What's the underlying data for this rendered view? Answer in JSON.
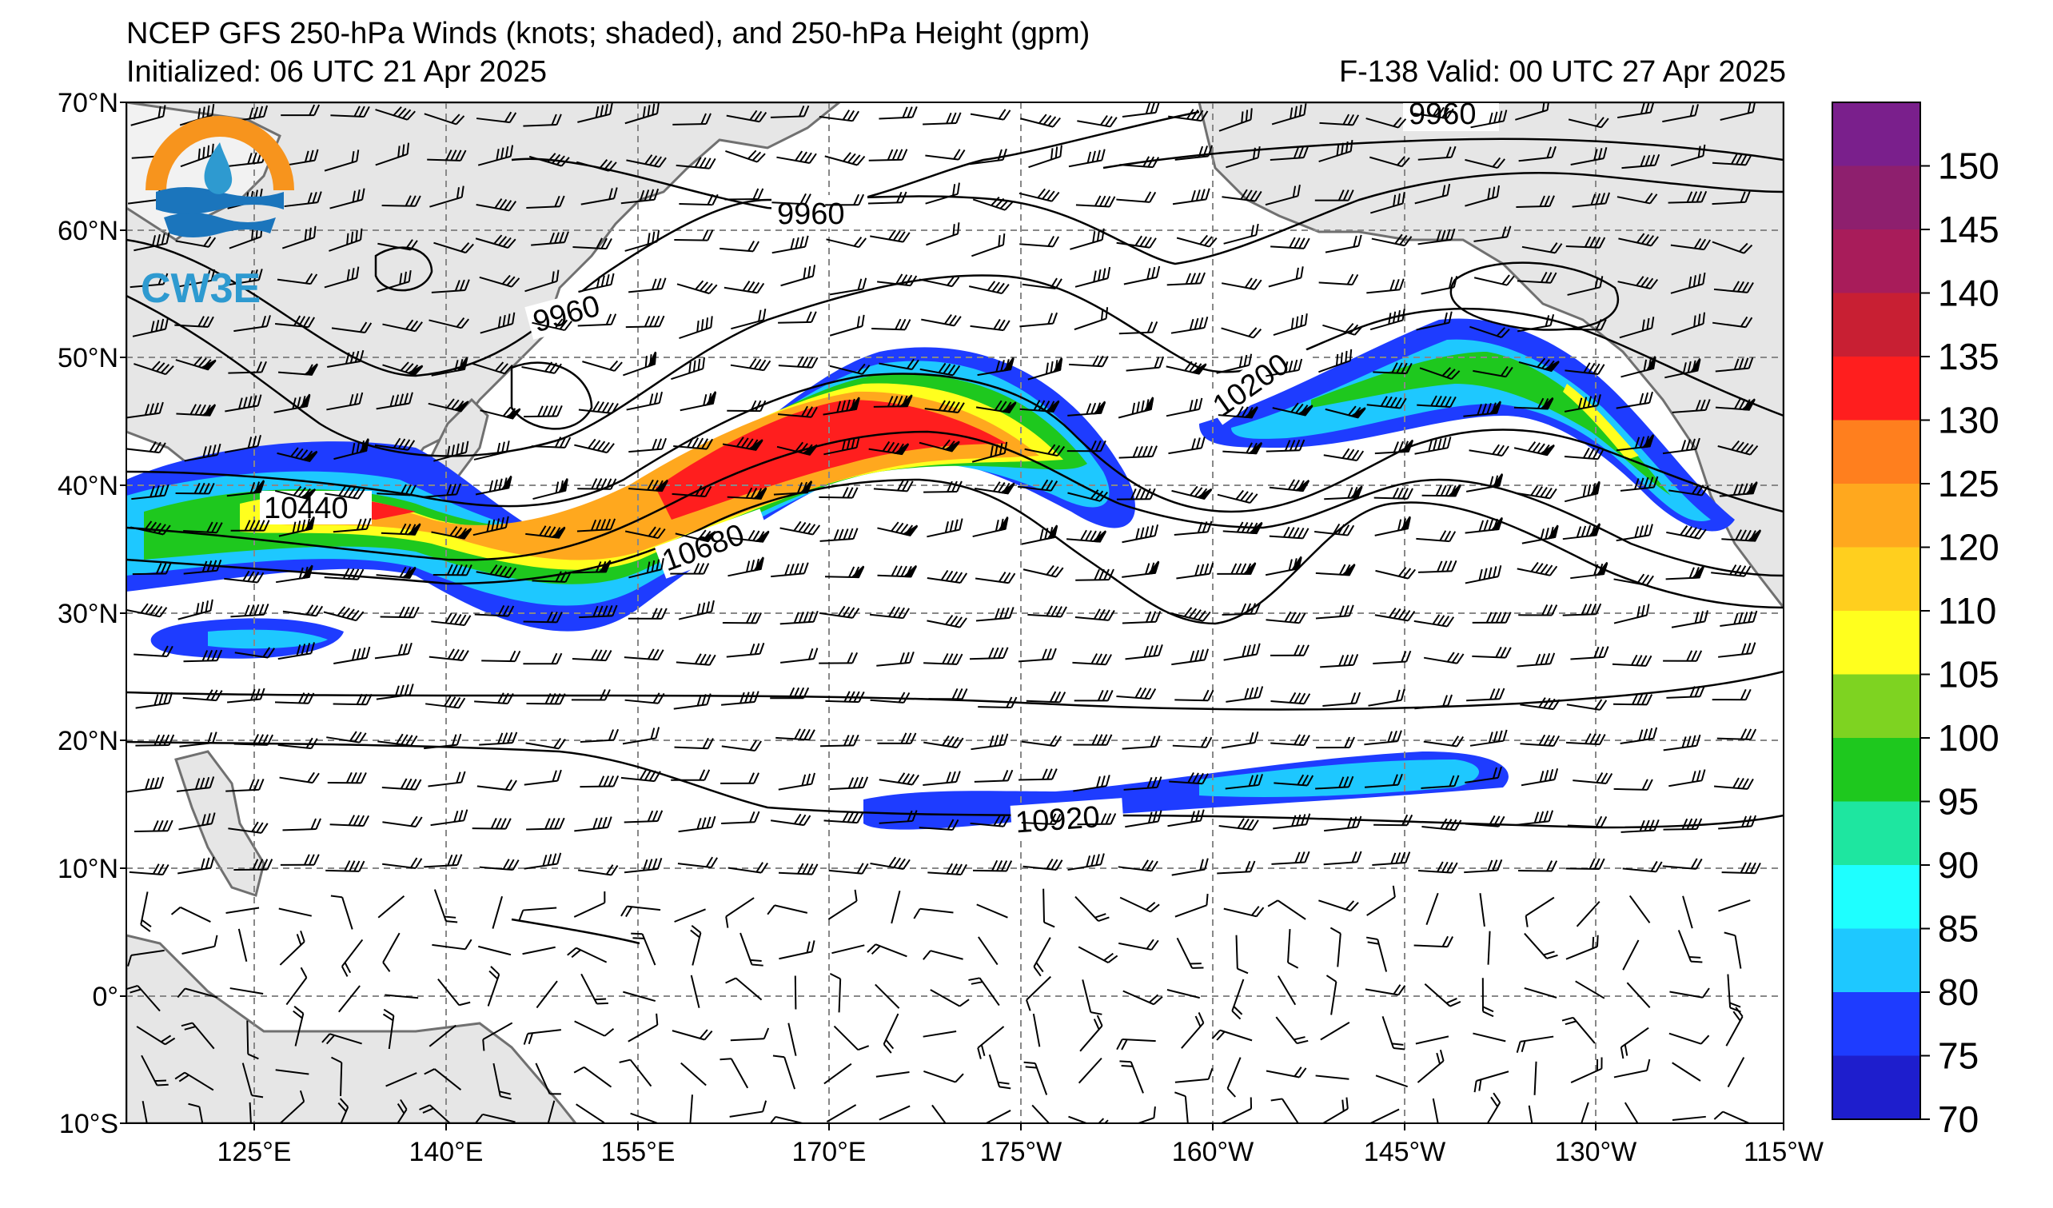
{
  "header": {
    "title": "NCEP GFS 250-hPa Winds (knots; shaded), and 250-hPa Height (gpm)",
    "initialized": "Initialized: 06 UTC 21 Apr 2025",
    "valid": "F-138  Valid: 00 UTC 27 Apr 2025"
  },
  "logo": {
    "text": "CW3E",
    "colors": [
      "#f7941d",
      "#1b75bc",
      "#2e9ad0"
    ]
  },
  "map": {
    "lat_labels": [
      "70°N",
      "60°N",
      "50°N",
      "40°N",
      "30°N",
      "20°N",
      "10°N",
      "0°",
      "10°S"
    ],
    "lon_labels": [
      "125°E",
      "140°E",
      "155°E",
      "170°E",
      "175°W",
      "160°W",
      "145°W",
      "130°W",
      "115°W"
    ],
    "land_color": "#e6e6e6",
    "coast_color": "#707070",
    "contour_labels": [
      "9960",
      "9960",
      "9960",
      "10200",
      "10440",
      "10680",
      "10920"
    ]
  },
  "colorbar": {
    "ticks": [
      "150",
      "145",
      "140",
      "135",
      "130",
      "125",
      "120",
      "110",
      "105",
      "100",
      "95",
      "90",
      "85",
      "80",
      "75",
      "70"
    ],
    "colors": [
      "#7a1f8c",
      "#8e1f6e",
      "#a81c5a",
      "#c81f33",
      "#ff1e1e",
      "#ff7f1e",
      "#ffa81e",
      "#ffcf1e",
      "#ffff1e",
      "#7ed321",
      "#1ec81e",
      "#1ee6a0",
      "#1effff",
      "#1ec8ff",
      "#1e3cff",
      "#1e1ecd"
    ]
  }
}
